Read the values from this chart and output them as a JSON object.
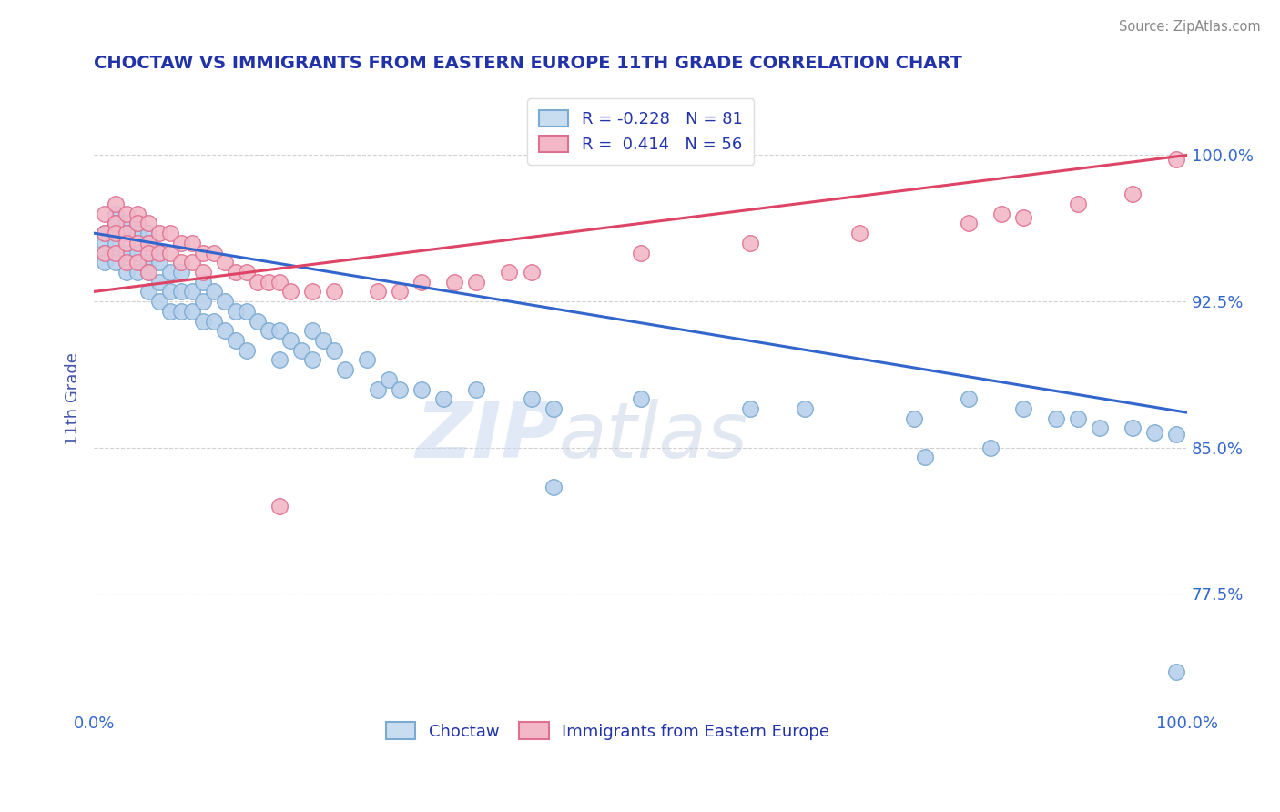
{
  "title": "CHOCTAW VS IMMIGRANTS FROM EASTERN EUROPE 11TH GRADE CORRELATION CHART",
  "source_text": "Source: ZipAtlas.com",
  "ylabel": "11th Grade",
  "watermark_zip": "ZIP",
  "watermark_atlas": "atlas",
  "x_min": 0.0,
  "x_max": 1.0,
  "y_min": 0.715,
  "y_max": 1.035,
  "y_ticks": [
    0.775,
    0.85,
    0.925,
    1.0
  ],
  "y_tick_labels": [
    "77.5%",
    "85.0%",
    "92.5%",
    "100.0%"
  ],
  "x_tick_labels": [
    "0.0%",
    "100.0%"
  ],
  "x_ticks": [
    0.0,
    1.0
  ],
  "blue_R": -0.228,
  "blue_N": 81,
  "pink_R": 0.414,
  "pink_N": 56,
  "blue_color": "#b8d0eb",
  "blue_edge_color": "#7aaad0",
  "pink_color": "#f2b8c8",
  "pink_edge_color": "#e07090",
  "blue_line_color": "#3366cc",
  "pink_line_color": "#dd4466",
  "legend_blue_fill": "#c8ddf0",
  "legend_blue_edge": "#7aaad0",
  "legend_pink_fill": "#f2b8c8",
  "legend_pink_edge": "#e07090",
  "title_color": "#2233aa",
  "axis_label_color": "#4455aa",
  "tick_label_color": "#3366cc",
  "source_color": "#888888",
  "background_color": "#ffffff",
  "blue_line_y0": 0.96,
  "blue_line_y1": 0.868,
  "pink_line_y0": 0.93,
  "pink_line_y1": 1.0,
  "blue_x": [
    0.01,
    0.01,
    0.01,
    0.01,
    0.02,
    0.02,
    0.02,
    0.02,
    0.02,
    0.03,
    0.03,
    0.03,
    0.03,
    0.04,
    0.04,
    0.04,
    0.04,
    0.05,
    0.05,
    0.05,
    0.05,
    0.05,
    0.06,
    0.06,
    0.06,
    0.06,
    0.07,
    0.07,
    0.07,
    0.08,
    0.08,
    0.08,
    0.09,
    0.09,
    0.1,
    0.1,
    0.1,
    0.11,
    0.11,
    0.12,
    0.12,
    0.13,
    0.13,
    0.14,
    0.14,
    0.15,
    0.16,
    0.17,
    0.17,
    0.18,
    0.19,
    0.2,
    0.2,
    0.21,
    0.22,
    0.23,
    0.25,
    0.26,
    0.27,
    0.28,
    0.3,
    0.32,
    0.35,
    0.4,
    0.42,
    0.5,
    0.6,
    0.65,
    0.75,
    0.8,
    0.85,
    0.88,
    0.9,
    0.92,
    0.95,
    0.97,
    0.99,
    0.82,
    0.76,
    0.99,
    0.42
  ],
  "blue_y": [
    0.96,
    0.955,
    0.95,
    0.945,
    0.97,
    0.965,
    0.96,
    0.955,
    0.945,
    0.965,
    0.96,
    0.95,
    0.94,
    0.965,
    0.96,
    0.95,
    0.94,
    0.96,
    0.955,
    0.945,
    0.94,
    0.93,
    0.95,
    0.945,
    0.935,
    0.925,
    0.94,
    0.93,
    0.92,
    0.94,
    0.93,
    0.92,
    0.93,
    0.92,
    0.935,
    0.925,
    0.915,
    0.93,
    0.915,
    0.925,
    0.91,
    0.92,
    0.905,
    0.92,
    0.9,
    0.915,
    0.91,
    0.91,
    0.895,
    0.905,
    0.9,
    0.91,
    0.895,
    0.905,
    0.9,
    0.89,
    0.895,
    0.88,
    0.885,
    0.88,
    0.88,
    0.875,
    0.88,
    0.875,
    0.87,
    0.875,
    0.87,
    0.87,
    0.865,
    0.875,
    0.87,
    0.865,
    0.865,
    0.86,
    0.86,
    0.858,
    0.857,
    0.85,
    0.845,
    0.735,
    0.83
  ],
  "pink_x": [
    0.01,
    0.01,
    0.01,
    0.02,
    0.02,
    0.02,
    0.02,
    0.03,
    0.03,
    0.03,
    0.03,
    0.04,
    0.04,
    0.04,
    0.04,
    0.05,
    0.05,
    0.05,
    0.05,
    0.06,
    0.06,
    0.07,
    0.07,
    0.08,
    0.08,
    0.09,
    0.09,
    0.1,
    0.1,
    0.11,
    0.12,
    0.13,
    0.14,
    0.15,
    0.16,
    0.17,
    0.18,
    0.2,
    0.22,
    0.26,
    0.28,
    0.3,
    0.33,
    0.35,
    0.38,
    0.4,
    0.5,
    0.6,
    0.7,
    0.8,
    0.85,
    0.9,
    0.95,
    0.99,
    0.17,
    0.83
  ],
  "pink_y": [
    0.97,
    0.96,
    0.95,
    0.975,
    0.965,
    0.96,
    0.95,
    0.97,
    0.96,
    0.955,
    0.945,
    0.97,
    0.965,
    0.955,
    0.945,
    0.965,
    0.955,
    0.95,
    0.94,
    0.96,
    0.95,
    0.96,
    0.95,
    0.955,
    0.945,
    0.955,
    0.945,
    0.95,
    0.94,
    0.95,
    0.945,
    0.94,
    0.94,
    0.935,
    0.935,
    0.935,
    0.93,
    0.93,
    0.93,
    0.93,
    0.93,
    0.935,
    0.935,
    0.935,
    0.94,
    0.94,
    0.95,
    0.955,
    0.96,
    0.965,
    0.968,
    0.975,
    0.98,
    0.998,
    0.82,
    0.97
  ]
}
